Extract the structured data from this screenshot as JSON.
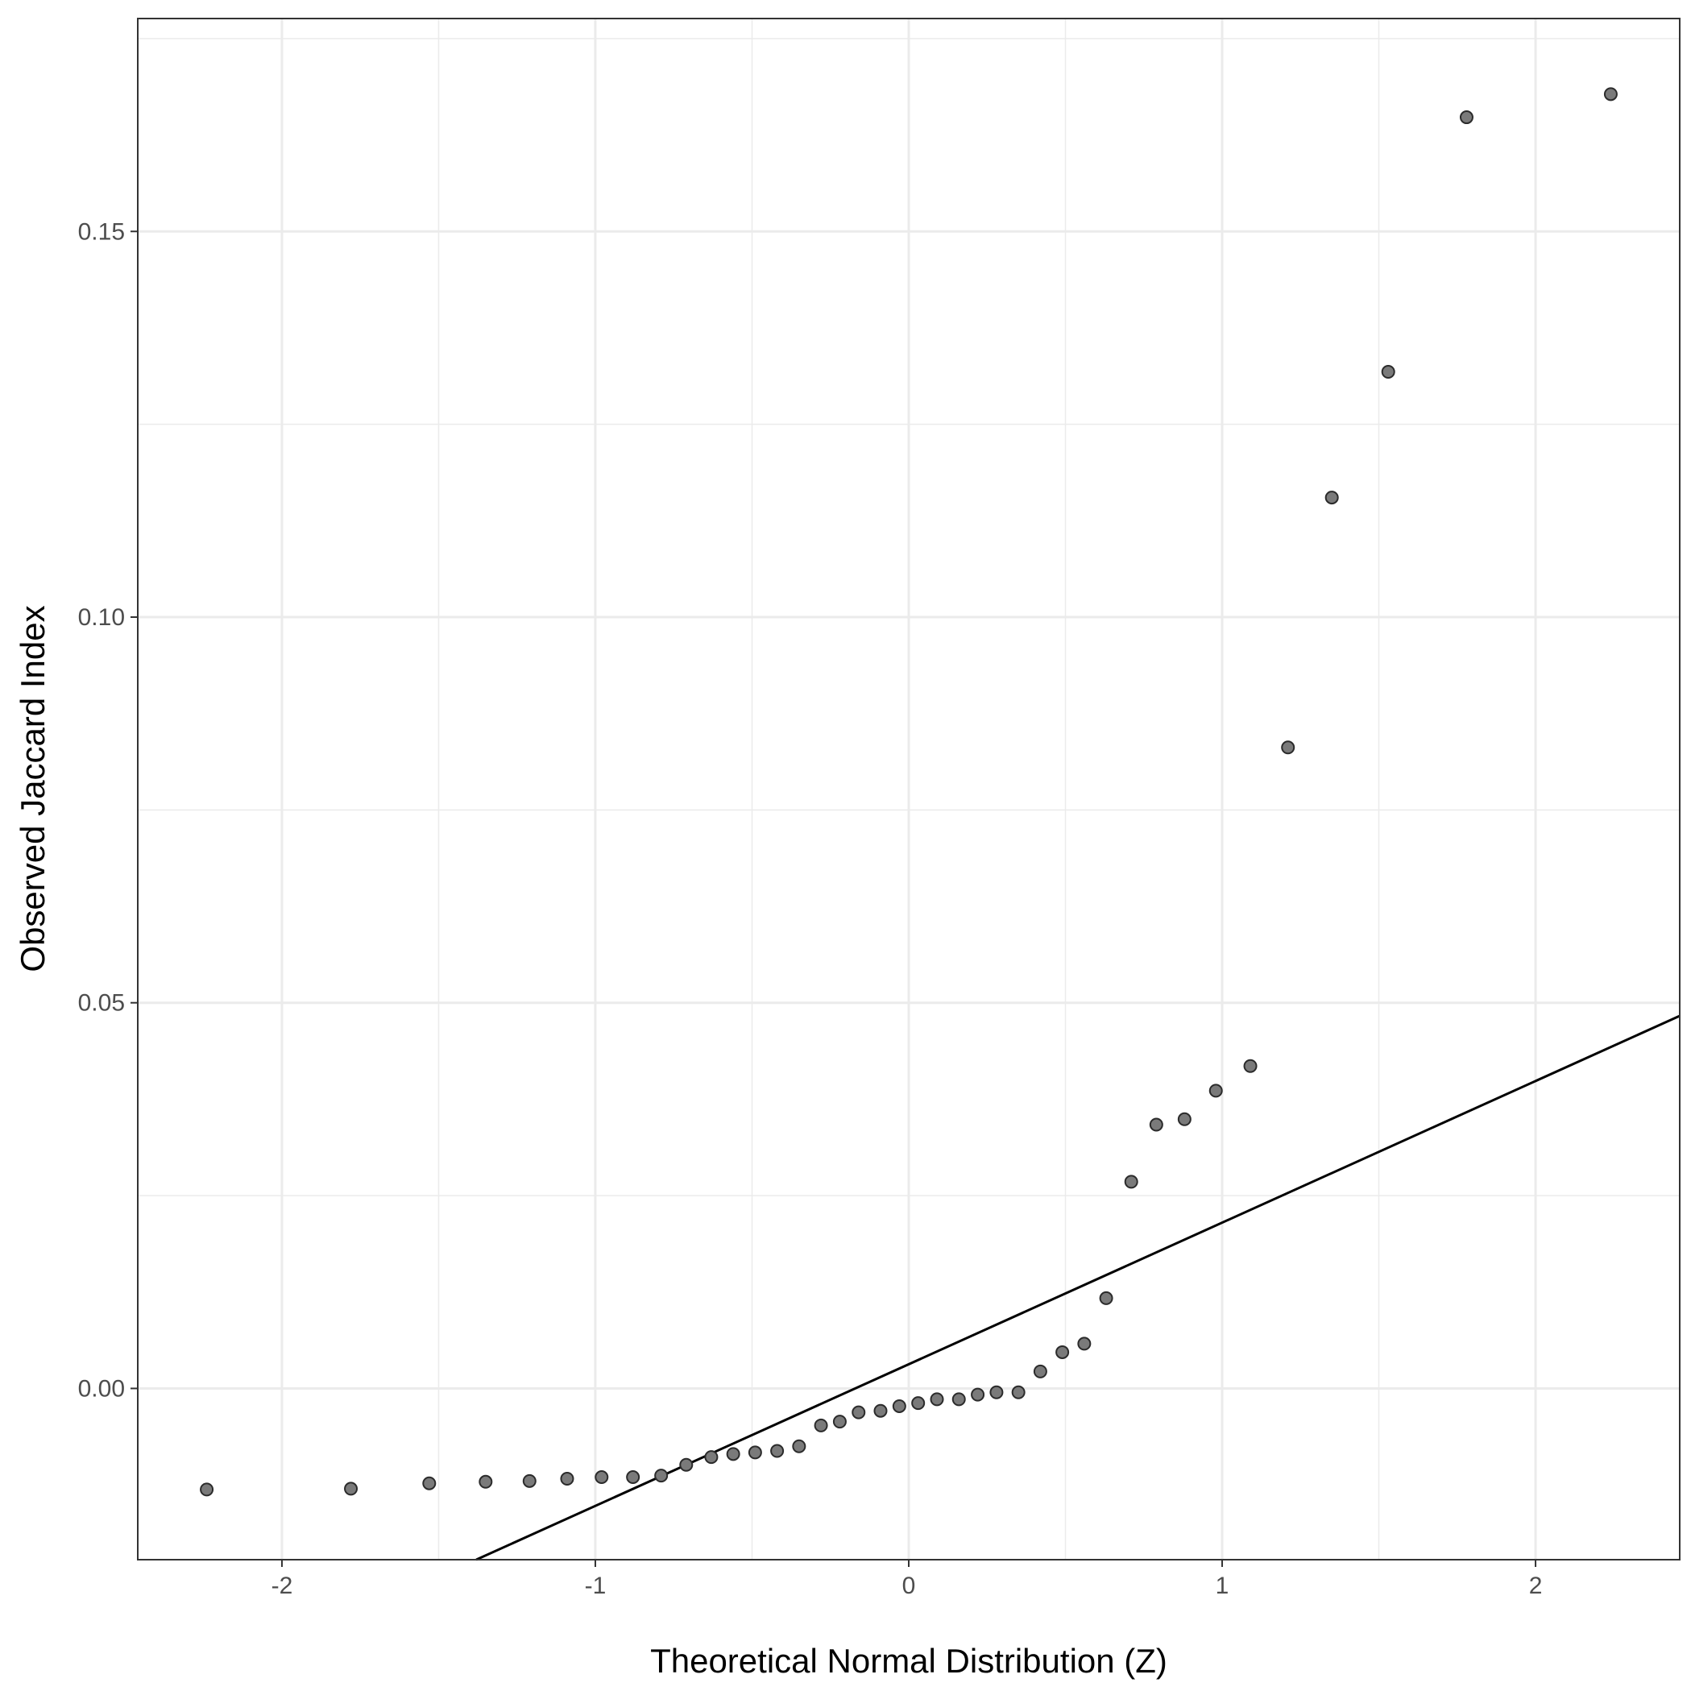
{
  "chart_data": {
    "type": "scatter",
    "title": "",
    "xlabel": "Theoretical Normal Distribution (Z)",
    "ylabel": "Observed Jaccard Index",
    "xlim": [
      -2.46,
      2.46
    ],
    "ylim": [
      -0.0222,
      0.1776
    ],
    "x_ticks": [
      -2,
      -1,
      0,
      1,
      2
    ],
    "x_tick_labels": [
      "-2",
      "-1",
      "0",
      "1",
      "2"
    ],
    "y_ticks": [
      0.0,
      0.05,
      0.1,
      0.15
    ],
    "y_tick_labels": [
      "0.00",
      "0.05",
      "0.10",
      "0.15"
    ],
    "grid": true,
    "legend": "none",
    "colors": {
      "points": "#7a7a7a",
      "point_stroke": "#2b2b2b",
      "line": "#000000",
      "grid": "#ebebeb",
      "border": "#333333"
    },
    "points": {
      "x": [
        -2.24,
        -1.78,
        -1.53,
        -1.35,
        -1.21,
        -1.09,
        -0.98,
        -0.88,
        -0.79,
        -0.71,
        -0.63,
        -0.56,
        -0.49,
        -0.42,
        -0.35,
        -0.28,
        -0.22,
        -0.16,
        -0.09,
        -0.03,
        0.03,
        0.09,
        0.16,
        0.22,
        0.28,
        0.35,
        0.42,
        0.49,
        0.56,
        0.63,
        0.71,
        0.79,
        0.88,
        0.98,
        1.09,
        1.21,
        1.35,
        1.53,
        1.78,
        2.24
      ],
      "y": [
        -0.0131,
        -0.013,
        -0.0123,
        -0.0121,
        -0.012,
        -0.0117,
        -0.0115,
        -0.0115,
        -0.0113,
        -0.0099,
        -0.0089,
        -0.0085,
        -0.0083,
        -0.0081,
        -0.0075,
        -0.0048,
        -0.0043,
        -0.0031,
        -0.0029,
        -0.0023,
        -0.0019,
        -0.0014,
        -0.0014,
        -0.0008,
        -0.0005,
        -0.0005,
        0.0022,
        0.0047,
        0.0058,
        0.0117,
        0.0268,
        0.0342,
        0.0349,
        0.0386,
        0.0418,
        0.0831,
        0.1155,
        0.1318,
        0.1648,
        0.1678
      ]
    },
    "reference_line": {
      "x": [
        -1.38,
        2.46
      ],
      "y": [
        -0.0222,
        0.0483
      ]
    }
  }
}
